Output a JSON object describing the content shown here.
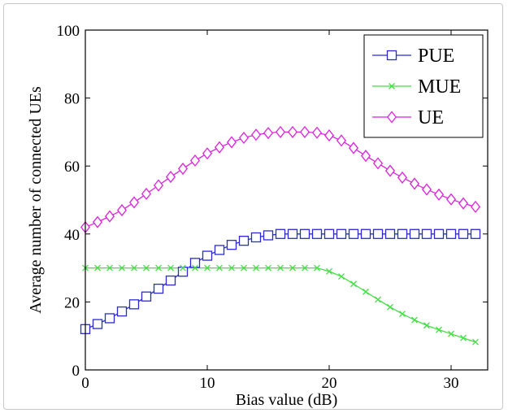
{
  "chart_data": {
    "type": "line",
    "xlabel": "Bias value (dB)",
    "ylabel": "Average number of connected UEs",
    "xlim": [
      0,
      33
    ],
    "ylim": [
      0,
      100
    ],
    "xticks": [
      0,
      10,
      20,
      30
    ],
    "yticks": [
      0,
      20,
      40,
      60,
      80,
      100
    ],
    "grid": false,
    "legend_position": "top-right",
    "x": [
      0,
      1,
      2,
      3,
      4,
      5,
      6,
      7,
      8,
      9,
      10,
      11,
      12,
      13,
      14,
      15,
      16,
      17,
      18,
      19,
      20,
      21,
      22,
      23,
      24,
      25,
      26,
      27,
      28,
      29,
      30,
      31,
      32
    ],
    "series": [
      {
        "name": "PUE",
        "color": "#2b2bd4",
        "marker": "square",
        "values": [
          12,
          13.5,
          15.2,
          17.2,
          19.3,
          21.6,
          23.9,
          26.3,
          28.9,
          31.5,
          33.6,
          35.3,
          36.8,
          38,
          39,
          39.6,
          40,
          40,
          40,
          40,
          40,
          40,
          40,
          40,
          40,
          40,
          40,
          40,
          40,
          40,
          40,
          40,
          40
        ]
      },
      {
        "name": "MUE",
        "color": "#44dd44",
        "marker": "x",
        "values": [
          30,
          30,
          30,
          30,
          30,
          30,
          30,
          30,
          30,
          30,
          30,
          30,
          30,
          30,
          30,
          30,
          30,
          30,
          30,
          30,
          29,
          27.5,
          25.3,
          23,
          20.7,
          18.5,
          16.5,
          14.7,
          13.1,
          11.8,
          10.6,
          9.4,
          8.2
        ]
      },
      {
        "name": "UE",
        "color": "#dd22dd",
        "marker": "diamond",
        "values": [
          42,
          43.5,
          45.2,
          47,
          49.3,
          51.8,
          54.3,
          56.8,
          59.2,
          61.6,
          63.7,
          65.5,
          67,
          68.3,
          69.2,
          69.7,
          70,
          70,
          70,
          69.8,
          69,
          67.5,
          65.3,
          63,
          60.8,
          58.6,
          56.6,
          54.8,
          53.1,
          51.6,
          50.2,
          49,
          48
        ]
      }
    ]
  }
}
